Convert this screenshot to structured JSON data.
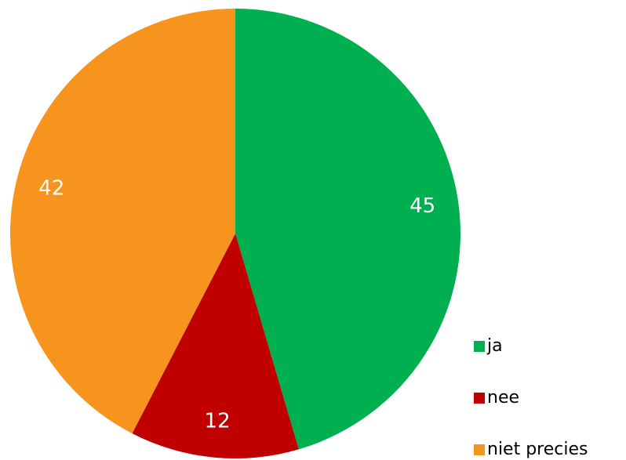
{
  "chart_data": {
    "type": "pie",
    "categories": [
      "ja",
      "nee",
      "niet precies"
    ],
    "values": [
      45,
      12,
      42
    ],
    "colors": [
      "#00b050",
      "#c00000",
      "#f7941d"
    ],
    "legend": "right"
  }
}
